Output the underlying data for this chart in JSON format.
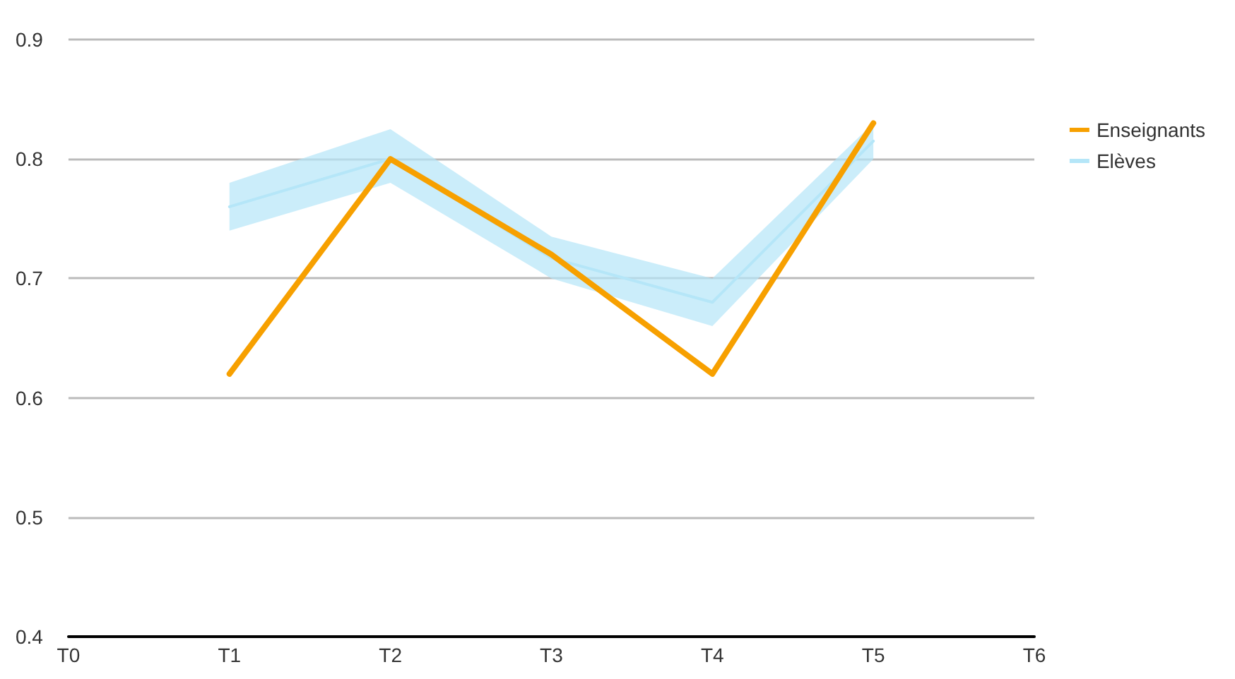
{
  "chart_data": {
    "type": "line",
    "categories": [
      "T0",
      "T1",
      "T2",
      "T3",
      "T4",
      "T5",
      "T6"
    ],
    "series": [
      {
        "name": "Enseignants",
        "color": "#f7a000",
        "values": [
          null,
          0.62,
          0.8,
          0.72,
          0.62,
          0.83,
          null
        ]
      },
      {
        "name": "Elèves",
        "type": "line",
        "color": "#b5e6f8",
        "values": [
          null,
          0.76,
          0.8,
          0.717,
          0.68,
          0.815,
          null
        ],
        "lower": [
          null,
          0.74,
          0.78,
          0.7,
          0.66,
          0.8,
          null
        ],
        "upper": [
          null,
          0.78,
          0.825,
          0.735,
          0.7,
          0.83,
          null
        ]
      }
    ],
    "ylim": [
      0.4,
      0.9
    ],
    "yticks": [
      0.4,
      0.5,
      0.6,
      0.7,
      0.8,
      0.9
    ],
    "grid": "y",
    "legend": "right",
    "marker": "none",
    "line_style": "solid"
  }
}
